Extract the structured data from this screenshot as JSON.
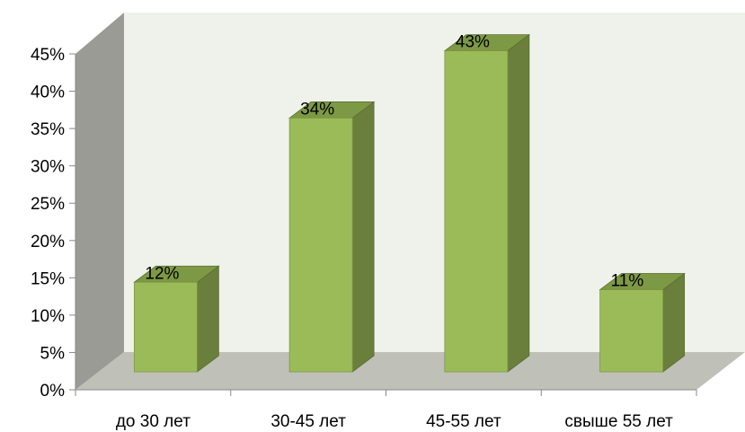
{
  "chart_data": {
    "type": "bar",
    "categories": [
      "до 30 лет",
      "30-45 лет",
      "45-55 лет",
      "свыше 55 лет"
    ],
    "values": [
      12,
      34,
      43,
      11
    ],
    "data_labels": [
      "12%",
      "34%",
      "43%",
      "11%"
    ],
    "ylim": [
      0,
      45
    ],
    "yticks": [
      0,
      5,
      10,
      15,
      20,
      25,
      30,
      35,
      40,
      45
    ],
    "ytick_labels": [
      "0%",
      "5%",
      "10%",
      "15%",
      "20%",
      "25%",
      "30%",
      "35%",
      "40%",
      "45%"
    ],
    "grid": false,
    "legend": "none",
    "style": "3d-column",
    "colors": {
      "bar_front": "#9BBB59",
      "bar_side": "#6A7F3B",
      "bar_top": "#7E9945",
      "back_wall": "#EFF2EA",
      "side_wall": "#9A9B95",
      "floor": "#BFC0B7"
    }
  }
}
